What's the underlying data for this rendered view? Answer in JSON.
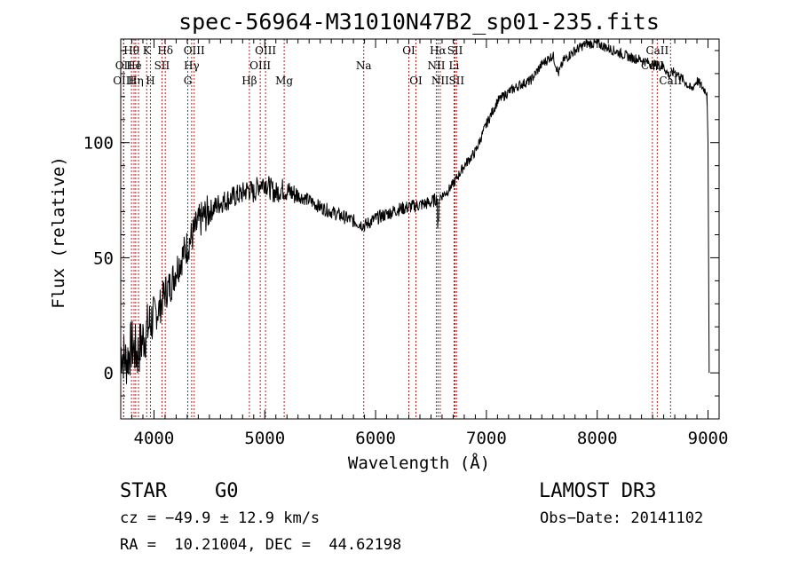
{
  "chart_data": {
    "type": "line",
    "title": "spec-56964-M31010N47B2_sp01-235.fits",
    "xlabel": "Wavelength (Å)",
    "ylabel": "Flux (relative)",
    "xlim": [
      3700,
      9100
    ],
    "ylim": [
      -20,
      145
    ],
    "xticks": [
      4000,
      5000,
      6000,
      7000,
      8000,
      9000
    ],
    "yticks": [
      0,
      50,
      100
    ],
    "series": [
      {
        "name": "flux",
        "x": [
          3700,
          3750,
          3800,
          3850,
          3900,
          3950,
          4000,
          4050,
          4100,
          4150,
          4200,
          4250,
          4300,
          4350,
          4400,
          4450,
          4500,
          4600,
          4700,
          4800,
          4850,
          4900,
          4950,
          5000,
          5050,
          5100,
          5150,
          5200,
          5300,
          5400,
          5500,
          5600,
          5700,
          5800,
          5900,
          6000,
          6100,
          6200,
          6300,
          6400,
          6500,
          6560,
          6600,
          6650,
          6700,
          6750,
          6800,
          6900,
          7000,
          7100,
          7200,
          7300,
          7400,
          7500,
          7600,
          7650,
          7700,
          7800,
          7900,
          8000,
          8100,
          8200,
          8300,
          8400,
          8500,
          8600,
          8650,
          8700,
          8800,
          8850,
          8900,
          8950,
          8990,
          9000,
          9010
        ],
        "y": [
          10,
          5,
          12,
          8,
          15,
          20,
          25,
          28,
          35,
          38,
          45,
          50,
          55,
          60,
          65,
          68,
          70,
          74,
          76,
          78,
          80,
          78,
          82,
          83,
          80,
          78,
          80,
          79,
          77,
          75,
          72,
          70,
          68,
          66,
          64,
          67,
          69,
          71,
          72,
          73,
          74,
          76,
          77,
          79,
          82,
          86,
          90,
          96,
          108,
          118,
          122,
          125,
          127,
          134,
          138,
          130,
          136,
          140,
          143,
          143,
          141,
          139,
          137,
          136,
          134,
          133,
          129,
          131,
          126,
          123,
          127,
          124,
          122,
          100,
          0
        ]
      }
    ],
    "spectral_lines": [
      {
        "label": "Hθ",
        "row": 1,
        "x": 3797
      },
      {
        "label": "K",
        "row": 1,
        "x": 3934
      },
      {
        "label": "Hδ",
        "row": 1,
        "x": 4102
      },
      {
        "label": "OIII",
        "row": 1,
        "x": 4363
      },
      {
        "label": "OIII",
        "row": 1,
        "x": 5007
      },
      {
        "label": "OI",
        "row": 1,
        "x": 6300
      },
      {
        "label": "Hα",
        "row": 1,
        "x": 6563
      },
      {
        "label": "SII",
        "row": 1,
        "x": 6717
      },
      {
        "label": "CaII",
        "row": 1,
        "x": 8542
      },
      {
        "label": "OII",
        "row": 2,
        "x": 3727
      },
      {
        "label": "He",
        "row": 2,
        "x": 3820
      },
      {
        "label": "I",
        "row": 2,
        "x": 3860
      },
      {
        "label": "SII",
        "row": 2,
        "x": 4072
      },
      {
        "label": "Hγ",
        "row": 2,
        "x": 4340
      },
      {
        "label": "OIII",
        "row": 2,
        "x": 4959
      },
      {
        "label": "Na",
        "row": 2,
        "x": 5893
      },
      {
        "label": "NII",
        "row": 2,
        "x": 6548
      },
      {
        "label": "Li",
        "row": 2,
        "x": 6708
      },
      {
        "label": "CaII",
        "row": 2,
        "x": 8498
      },
      {
        "label": "OIII",
        "row": 3,
        "x": 3726
      },
      {
        "label": "Hη",
        "row": 3,
        "x": 3835
      },
      {
        "label": "H",
        "row": 3,
        "x": 3968
      },
      {
        "label": "G",
        "row": 3,
        "x": 4305
      },
      {
        "label": "Hβ",
        "row": 3,
        "x": 4861
      },
      {
        "label": "Mg",
        "row": 3,
        "x": 5175
      },
      {
        "label": "OI",
        "row": 3,
        "x": 6364
      },
      {
        "label": "NII",
        "row": 3,
        "x": 6583
      },
      {
        "label": "SII",
        "row": 3,
        "x": 6731
      },
      {
        "label": "CaII",
        "row": 3,
        "x": 8662
      }
    ]
  },
  "info": {
    "class": "STAR",
    "subclass": "G0",
    "survey": "LAMOST DR3",
    "cz": "cz = −49.9 ± 12.9 km/s",
    "obs_date": "Obs−Date: 20141102",
    "coords": "RA =  10.21004, DEC =  44.62198"
  }
}
